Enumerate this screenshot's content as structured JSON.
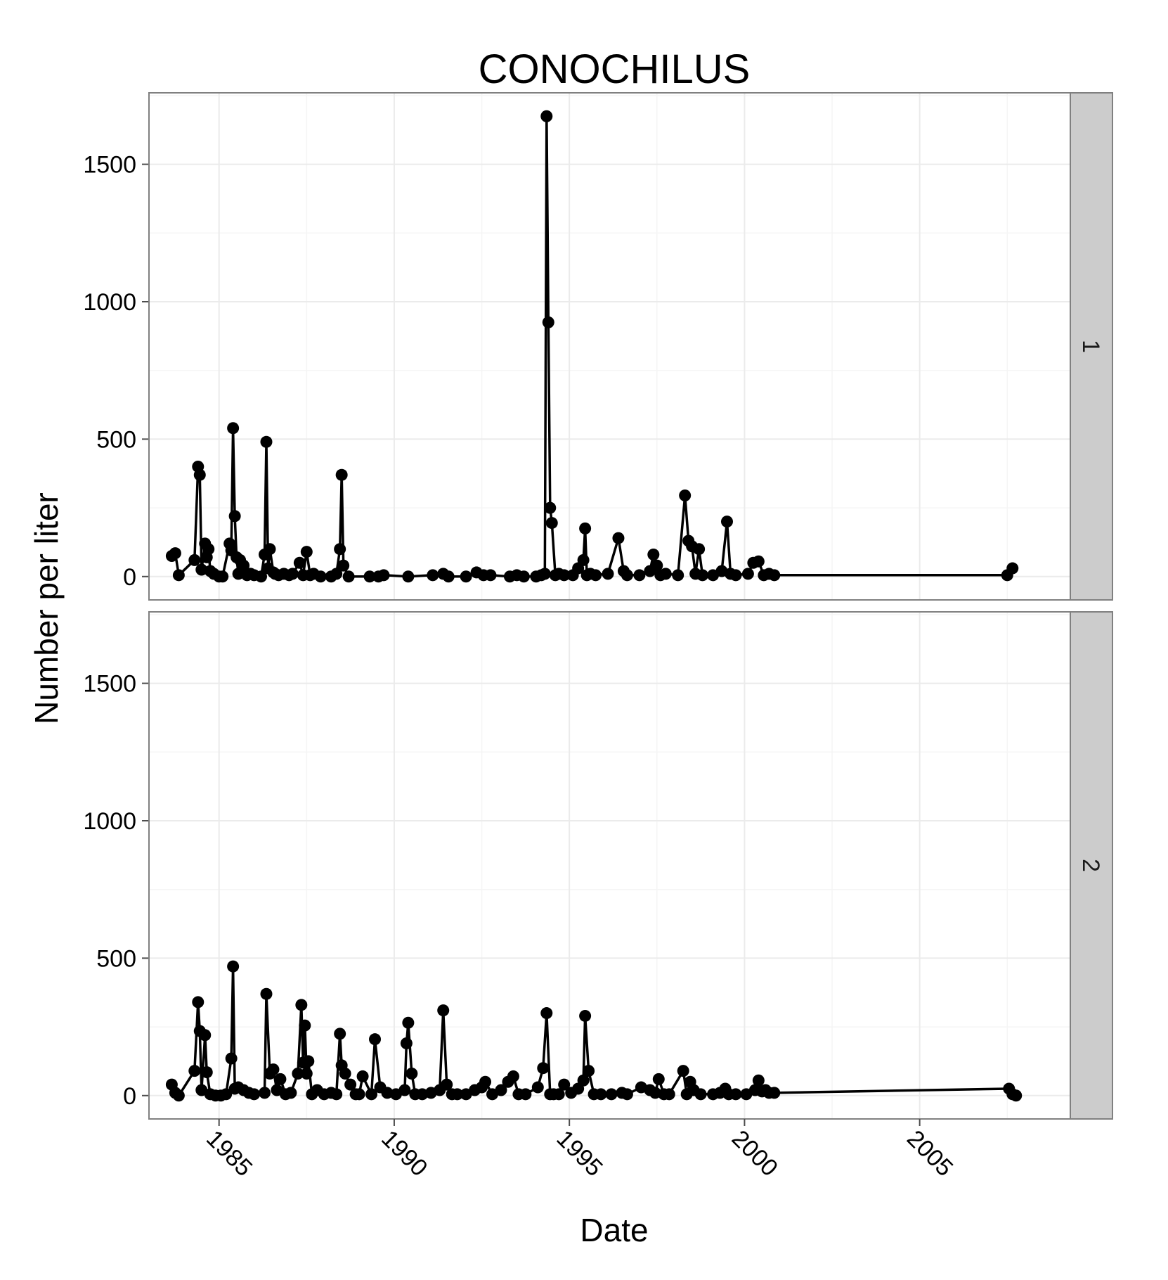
{
  "chart_data": {
    "type": "line",
    "title": "CONOCHILUS",
    "xlabel": "Date",
    "ylabel": "Number per liter",
    "xlim": [
      1983.0,
      2009.3
    ],
    "ylim": [
      -85,
      1760
    ],
    "x_ticks": [
      1985,
      1990,
      1995,
      2000,
      2005
    ],
    "x_tick_labels": [
      "1985",
      "1990",
      "1995",
      "2000",
      "2005"
    ],
    "y_ticks": [
      0,
      500,
      1000,
      1500
    ],
    "y_tick_labels": [
      "0",
      "500",
      "1000",
      "1500"
    ],
    "grid": true,
    "markers": true,
    "colors": {
      "line": "#000000",
      "panel_border": "#808080",
      "grid_major": "#ebebeb",
      "grid_minor": "#f5f5f5",
      "strip_fill": "#cccccc"
    },
    "panels": [
      {
        "strip_label": "1",
        "x": [
          1983.65,
          1983.75,
          1983.85,
          1984.3,
          1984.4,
          1984.45,
          1984.5,
          1984.6,
          1984.65,
          1984.7,
          1984.75,
          1984.85,
          1985.0,
          1985.1,
          1985.3,
          1985.35,
          1985.4,
          1985.45,
          1985.5,
          1985.55,
          1985.6,
          1985.7,
          1985.8,
          1985.9,
          1986.0,
          1986.2,
          1986.3,
          1986.35,
          1986.4,
          1986.45,
          1986.55,
          1986.6,
          1986.7,
          1986.85,
          1987.0,
          1987.1,
          1987.3,
          1987.4,
          1987.5,
          1987.6,
          1987.7,
          1987.9,
          1988.2,
          1988.35,
          1988.45,
          1988.5,
          1988.55,
          1988.7,
          1989.3,
          1989.55,
          1989.7,
          1990.4,
          1991.1,
          1991.4,
          1991.55,
          1992.05,
          1992.35,
          1992.55,
          1992.75,
          1993.3,
          1993.5,
          1993.7,
          1994.05,
          1994.2,
          1994.3,
          1994.35,
          1994.4,
          1994.45,
          1994.5,
          1994.6,
          1994.7,
          1994.85,
          1995.1,
          1995.25,
          1995.4,
          1995.45,
          1995.5,
          1995.6,
          1995.75,
          1996.1,
          1996.4,
          1996.55,
          1996.65,
          1997.0,
          1997.3,
          1997.4,
          1997.5,
          1997.6,
          1997.75,
          1998.1,
          1998.3,
          1998.4,
          1998.5,
          1998.6,
          1998.7,
          1998.8,
          1999.1,
          1999.35,
          1999.5,
          1999.6,
          1999.75,
          2000.1,
          2000.25,
          2000.4,
          2000.55,
          2000.7,
          2000.85,
          2007.5,
          2007.65
        ],
        "y": [
          75,
          85,
          5,
          60,
          400,
          370,
          25,
          120,
          70,
          100,
          20,
          10,
          0,
          0,
          120,
          95,
          540,
          220,
          70,
          10,
          60,
          40,
          5,
          10,
          5,
          0,
          80,
          490,
          30,
          100,
          15,
          10,
          5,
          10,
          5,
          10,
          50,
          5,
          90,
          5,
          10,
          0,
          0,
          10,
          100,
          370,
          40,
          0,
          0,
          0,
          5,
          0,
          5,
          10,
          0,
          0,
          15,
          5,
          5,
          0,
          5,
          0,
          0,
          5,
          10,
          1675,
          925,
          250,
          195,
          5,
          10,
          5,
          5,
          30,
          60,
          175,
          5,
          10,
          5,
          10,
          140,
          20,
          5,
          5,
          20,
          80,
          40,
          5,
          10,
          5,
          295,
          130,
          110,
          10,
          100,
          5,
          5,
          20,
          200,
          10,
          5,
          10,
          50,
          55,
          5,
          10,
          5,
          5,
          30
        ]
      },
      {
        "strip_label": "2",
        "x": [
          1983.65,
          1983.75,
          1983.85,
          1984.3,
          1984.4,
          1984.45,
          1984.5,
          1984.6,
          1984.65,
          1984.75,
          1984.9,
          1985.05,
          1985.2,
          1985.35,
          1985.4,
          1985.45,
          1985.55,
          1985.7,
          1985.85,
          1986.0,
          1986.3,
          1986.35,
          1986.45,
          1986.55,
          1986.65,
          1986.75,
          1986.9,
          1987.05,
          1987.25,
          1987.35,
          1987.4,
          1987.45,
          1987.5,
          1987.55,
          1987.65,
          1987.8,
          1988.0,
          1988.2,
          1988.35,
          1988.45,
          1988.5,
          1988.6,
          1988.75,
          1988.9,
          1989.0,
          1989.1,
          1989.35,
          1989.45,
          1989.6,
          1989.8,
          1990.05,
          1990.3,
          1990.35,
          1990.4,
          1990.5,
          1990.6,
          1990.8,
          1991.05,
          1991.3,
          1991.4,
          1991.5,
          1991.65,
          1991.8,
          1992.05,
          1992.3,
          1992.5,
          1992.6,
          1992.8,
          1993.05,
          1993.25,
          1993.4,
          1993.55,
          1993.75,
          1994.1,
          1994.25,
          1994.35,
          1994.45,
          1994.55,
          1994.7,
          1994.85,
          1995.05,
          1995.25,
          1995.4,
          1995.45,
          1995.55,
          1995.7,
          1995.9,
          1996.2,
          1996.5,
          1996.65,
          1997.05,
          1997.3,
          1997.45,
          1997.55,
          1997.7,
          1997.85,
          1998.25,
          1998.35,
          1998.45,
          1998.55,
          1998.75,
          1999.1,
          1999.3,
          1999.45,
          1999.55,
          1999.75,
          2000.05,
          2000.3,
          2000.4,
          2000.5,
          2000.6,
          2000.7,
          2000.85,
          2007.55,
          2007.65,
          2007.75
        ],
        "y": [
          40,
          10,
          0,
          90,
          340,
          235,
          20,
          220,
          85,
          5,
          0,
          0,
          5,
          135,
          470,
          25,
          30,
          20,
          10,
          5,
          10,
          370,
          80,
          95,
          20,
          60,
          5,
          10,
          80,
          330,
          120,
          255,
          80,
          125,
          5,
          20,
          5,
          10,
          5,
          225,
          110,
          80,
          40,
          5,
          5,
          70,
          5,
          205,
          30,
          10,
          5,
          20,
          190,
          265,
          80,
          5,
          5,
          10,
          20,
          310,
          40,
          5,
          5,
          5,
          20,
          30,
          50,
          5,
          20,
          50,
          70,
          5,
          5,
          30,
          100,
          300,
          5,
          5,
          5,
          40,
          10,
          25,
          55,
          290,
          90,
          5,
          5,
          5,
          10,
          5,
          30,
          20,
          10,
          60,
          5,
          5,
          90,
          5,
          50,
          20,
          5,
          5,
          10,
          25,
          5,
          5,
          5,
          20,
          55,
          15,
          20,
          10,
          10,
          25,
          5,
          0
        ]
      }
    ]
  }
}
